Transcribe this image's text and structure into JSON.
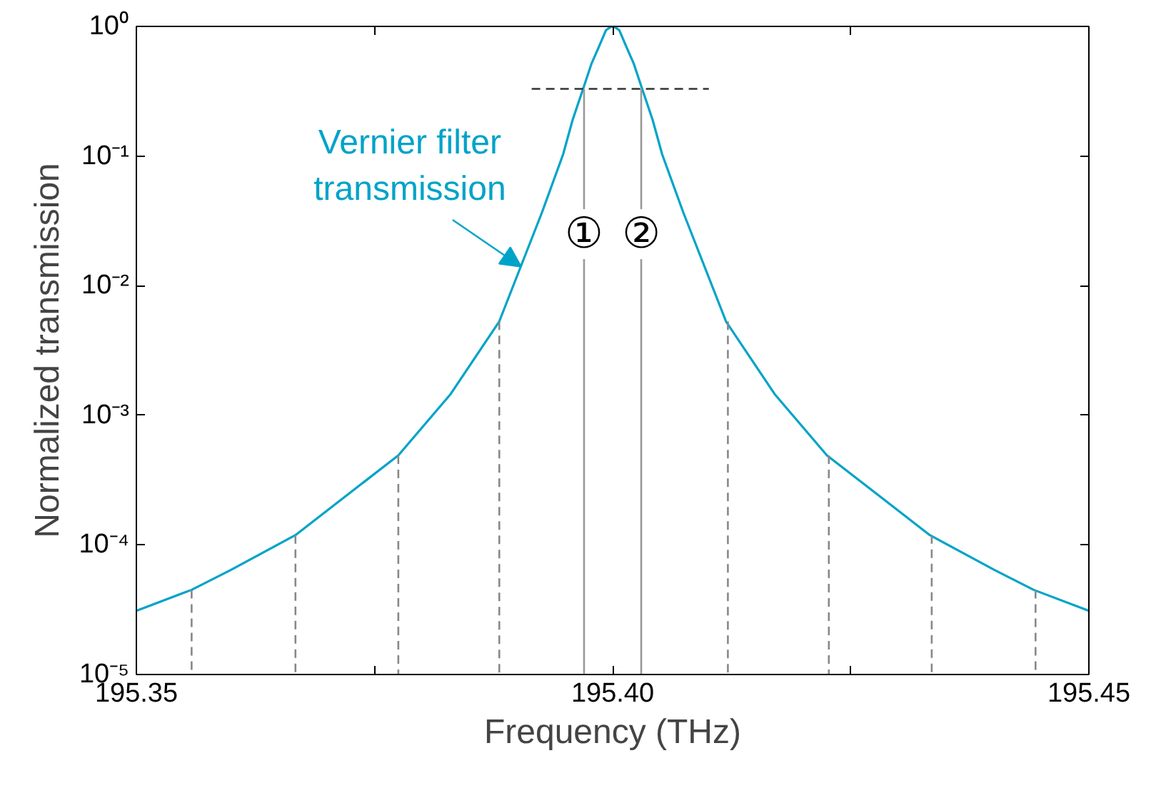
{
  "chart_data": {
    "type": "line",
    "xlabel": "Frequency (THz)",
    "ylabel": "Normalized transmission",
    "log": "y",
    "xlim": [
      195.35,
      195.45
    ],
    "ylim": [
      1e-05,
      1
    ],
    "xticks": [
      {
        "value": 195.35,
        "label": "195.35"
      },
      {
        "value": 195.375,
        "label": null
      },
      {
        "value": 195.4,
        "label": "195.40"
      },
      {
        "value": 195.425,
        "label": null
      },
      {
        "value": 195.45,
        "label": "195.45"
      }
    ],
    "yticks": [
      {
        "value": 1e-05,
        "label": "10⁻⁵"
      },
      {
        "value": 0.0001,
        "label": "10⁻⁴"
      },
      {
        "value": 0.001,
        "label": "10⁻³"
      },
      {
        "value": 0.01,
        "label": "10⁻²"
      },
      {
        "value": 0.1,
        "label": "10⁻¹"
      },
      {
        "value": 1,
        "label": "10⁰"
      }
    ],
    "grid": false,
    "series": [
      {
        "color": "#00a3c8",
        "line_style": "solid",
        "x": [
          195.35,
          195.3558,
          195.3599,
          195.3667,
          195.3722,
          195.3775,
          195.383,
          195.3881,
          195.3926,
          195.3948,
          195.3958,
          195.3969,
          195.3978,
          195.3985,
          195.3993,
          195.3997,
          195.4,
          195.4003,
          195.4007,
          195.4015,
          195.4022,
          195.4031,
          195.4042,
          195.4052,
          195.4074,
          195.4119,
          195.417,
          195.4225,
          195.4278,
          195.4333,
          195.4401,
          195.4442,
          195.45
        ],
        "values": [
          3.1e-05,
          4.5e-05,
          6.4e-05,
          0.000119,
          0.000245,
          0.00049,
          0.00146,
          0.0053,
          0.037,
          0.103,
          0.19,
          0.33,
          0.52,
          0.68,
          0.935,
          0.98,
          1,
          0.98,
          0.935,
          0.68,
          0.52,
          0.33,
          0.19,
          0.103,
          0.037,
          0.0053,
          0.00146,
          0.00049,
          0.000245,
          0.000119,
          6.4e-05,
          4.5e-05,
          3.1e-05
        ]
      },
      {
        "color": "#888888",
        "line_style": "dashed",
        "x": [
          195.3558,
          195.3558
        ],
        "values": [
          4.5e-05,
          1e-05
        ]
      },
      {
        "color": "#888888",
        "line_style": "dashed",
        "x": [
          195.3667,
          195.3667
        ],
        "values": [
          0.000119,
          1e-05
        ]
      },
      {
        "color": "#888888",
        "line_style": "dashed",
        "x": [
          195.3775,
          195.3775
        ],
        "values": [
          0.00049,
          1e-05
        ]
      },
      {
        "color": "#888888",
        "line_style": "dashed",
        "x": [
          195.3881,
          195.3881
        ],
        "values": [
          0.0053,
          1e-05
        ]
      },
      {
        "color": "#888888",
        "line_style": "dashed",
        "x": [
          195.4121,
          195.4121
        ],
        "values": [
          0.0053,
          1e-05
        ]
      },
      {
        "color": "#888888",
        "line_style": "dashed",
        "x": [
          195.4227,
          195.4227
        ],
        "values": [
          0.00049,
          1e-05
        ]
      },
      {
        "color": "#888888",
        "line_style": "dashed",
        "x": [
          195.4335,
          195.4335
        ],
        "values": [
          0.000119,
          1e-05
        ]
      },
      {
        "color": "#888888",
        "line_style": "dashed",
        "x": [
          195.4444,
          195.4444
        ],
        "values": [
          4.5e-05,
          1e-05
        ]
      },
      {
        "color": "#999999",
        "line_style": "solid",
        "x": [
          195.397,
          195.397
        ],
        "values": [
          1e-05,
          0.33
        ]
      },
      {
        "color": "#999999",
        "line_style": "solid",
        "x": [
          195.403,
          195.403
        ],
        "values": [
          1e-05,
          0.33
        ]
      },
      {
        "color": "#333333",
        "line_style": "dashed",
        "x": [
          195.3915,
          195.4101
        ],
        "values": [
          0.33,
          0.33
        ]
      }
    ],
    "annotations": [
      {
        "text": "Vernier filter\ntransmission",
        "x": 195.3904,
        "y": 0.014
      },
      {
        "text": "①",
        "x": 195.397,
        "y": 0.025
      },
      {
        "text": "②",
        "x": 195.403,
        "y": 0.025
      }
    ]
  }
}
